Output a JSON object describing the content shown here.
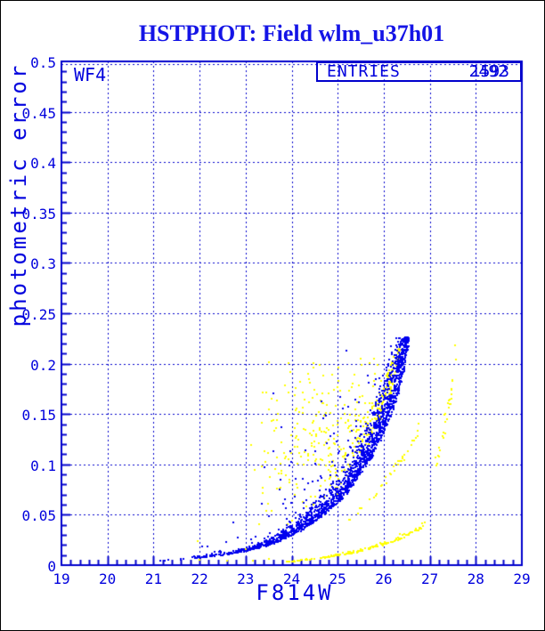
{
  "title": "HSTPHOT: Field wlm_u37h01",
  "colors": {
    "background": "#ffffff",
    "page_border": "#000000",
    "title": "#1414e6",
    "axis_text": "#0000dd",
    "frame": "#0000cc",
    "grid": "#0000cc",
    "blue_points": "#0000ee",
    "yellow_points": "#ffff00"
  },
  "plot": {
    "chip_label": "WF4",
    "entries": {
      "label": "ENTRIES",
      "values": [
        "2492",
        "1593"
      ]
    }
  },
  "chart_data": {
    "type": "scatter",
    "title": "HSTPHOT: Field wlm_u37h01",
    "xlabel": "F814W",
    "ylabel": "photometric error",
    "xlim": [
      19,
      29
    ],
    "ylim": [
      0,
      0.5
    ],
    "x_major": 1,
    "x_minor": 0.2,
    "y_major": 0.05,
    "y_minor": 0.01,
    "x_ticks": [
      "19",
      "20",
      "21",
      "22",
      "23",
      "24",
      "25",
      "26",
      "27",
      "28",
      "29"
    ],
    "y_ticks": [
      "0",
      "0.05",
      "0.1",
      "0.15",
      "0.2",
      "0.25",
      "0.3",
      "0.35",
      "0.4",
      "0.45",
      "0.5"
    ],
    "grid": {
      "style": "dashed",
      "at_x_majors": true,
      "at_y_majors": true
    },
    "legend": "none",
    "marker_px": 2,
    "draw_order": [
      2,
      0,
      1,
      3,
      4,
      5,
      6
    ],
    "series": [
      {
        "name": "wf4-blue-error-magnitude-sequence",
        "color": "#0000ee",
        "kind": "ridge",
        "count": 1750,
        "x_power": 0.35,
        "spread": 0.18,
        "outlier_frac": 0.04,
        "outlier_mult": 6,
        "y_max": 0.226,
        "ridge": [
          [
            20.9,
            0.0038
          ],
          [
            21.5,
            0.0052
          ],
          [
            22.0,
            0.0075
          ],
          [
            22.5,
            0.01
          ],
          [
            23.0,
            0.014
          ],
          [
            23.5,
            0.02
          ],
          [
            24.0,
            0.03
          ],
          [
            24.5,
            0.044
          ],
          [
            25.0,
            0.063
          ],
          [
            25.5,
            0.092
          ],
          [
            26.0,
            0.133
          ],
          [
            26.25,
            0.163
          ],
          [
            26.45,
            0.2
          ],
          [
            26.55,
            0.224
          ]
        ]
      },
      {
        "name": "wf4-blue-outliers",
        "color": "#0000ee",
        "kind": "box",
        "count": 45,
        "x_range": [
          23.4,
          26.3
        ],
        "y_range": [
          0.04,
          0.185
        ],
        "floor_series": 0,
        "floor_mult": 1.3
      },
      {
        "name": "yellow-scatter-cloud",
        "color": "#ffff00",
        "kind": "cloud",
        "count": 420,
        "x_range": [
          23.0,
          26.35
        ],
        "x_power": 0.55,
        "y_range": [
          0.025,
          0.215
        ],
        "floor_series": 0,
        "floor_mult": 1.1
      },
      {
        "name": "yellow-lower-sequence",
        "color": "#ffff00",
        "kind": "ridge",
        "count": 170,
        "x_power": 1,
        "spread": 0.07,
        "ridge": [
          [
            23.9,
            0.0032
          ],
          [
            24.4,
            0.0055
          ],
          [
            24.9,
            0.009
          ],
          [
            25.4,
            0.013
          ],
          [
            25.9,
            0.019
          ],
          [
            26.4,
            0.027
          ],
          [
            26.9,
            0.04
          ]
        ]
      },
      {
        "name": "yellow-mid-sequence",
        "color": "#ffff00",
        "kind": "ridge",
        "count": 35,
        "x_power": 1,
        "spread": 0.06,
        "ridge": [
          [
            25.2,
            0.042
          ],
          [
            25.6,
            0.058
          ],
          [
            26.0,
            0.08
          ],
          [
            26.4,
            0.104
          ],
          [
            26.8,
            0.132
          ]
        ]
      },
      {
        "name": "yellow-right-sequence",
        "color": "#ffff00",
        "kind": "ridge",
        "count": 30,
        "x_power": 1,
        "spread": 0.05,
        "ridge": [
          [
            27.1,
            0.092
          ],
          [
            27.25,
            0.115
          ],
          [
            27.38,
            0.145
          ],
          [
            27.48,
            0.172
          ],
          [
            27.58,
            0.205
          ]
        ]
      },
      {
        "name": "yellow-sparse-points",
        "color": "#ffff00",
        "kind": "points",
        "points": [
          [
            21.95,
            0.024
          ],
          [
            22.0,
            0.005
          ],
          [
            22.6,
            0.004
          ],
          [
            23.0,
            0.016
          ],
          [
            23.3,
            0.041
          ],
          [
            23.5,
            0.006
          ],
          [
            23.15,
            0.004
          ]
        ]
      }
    ]
  }
}
